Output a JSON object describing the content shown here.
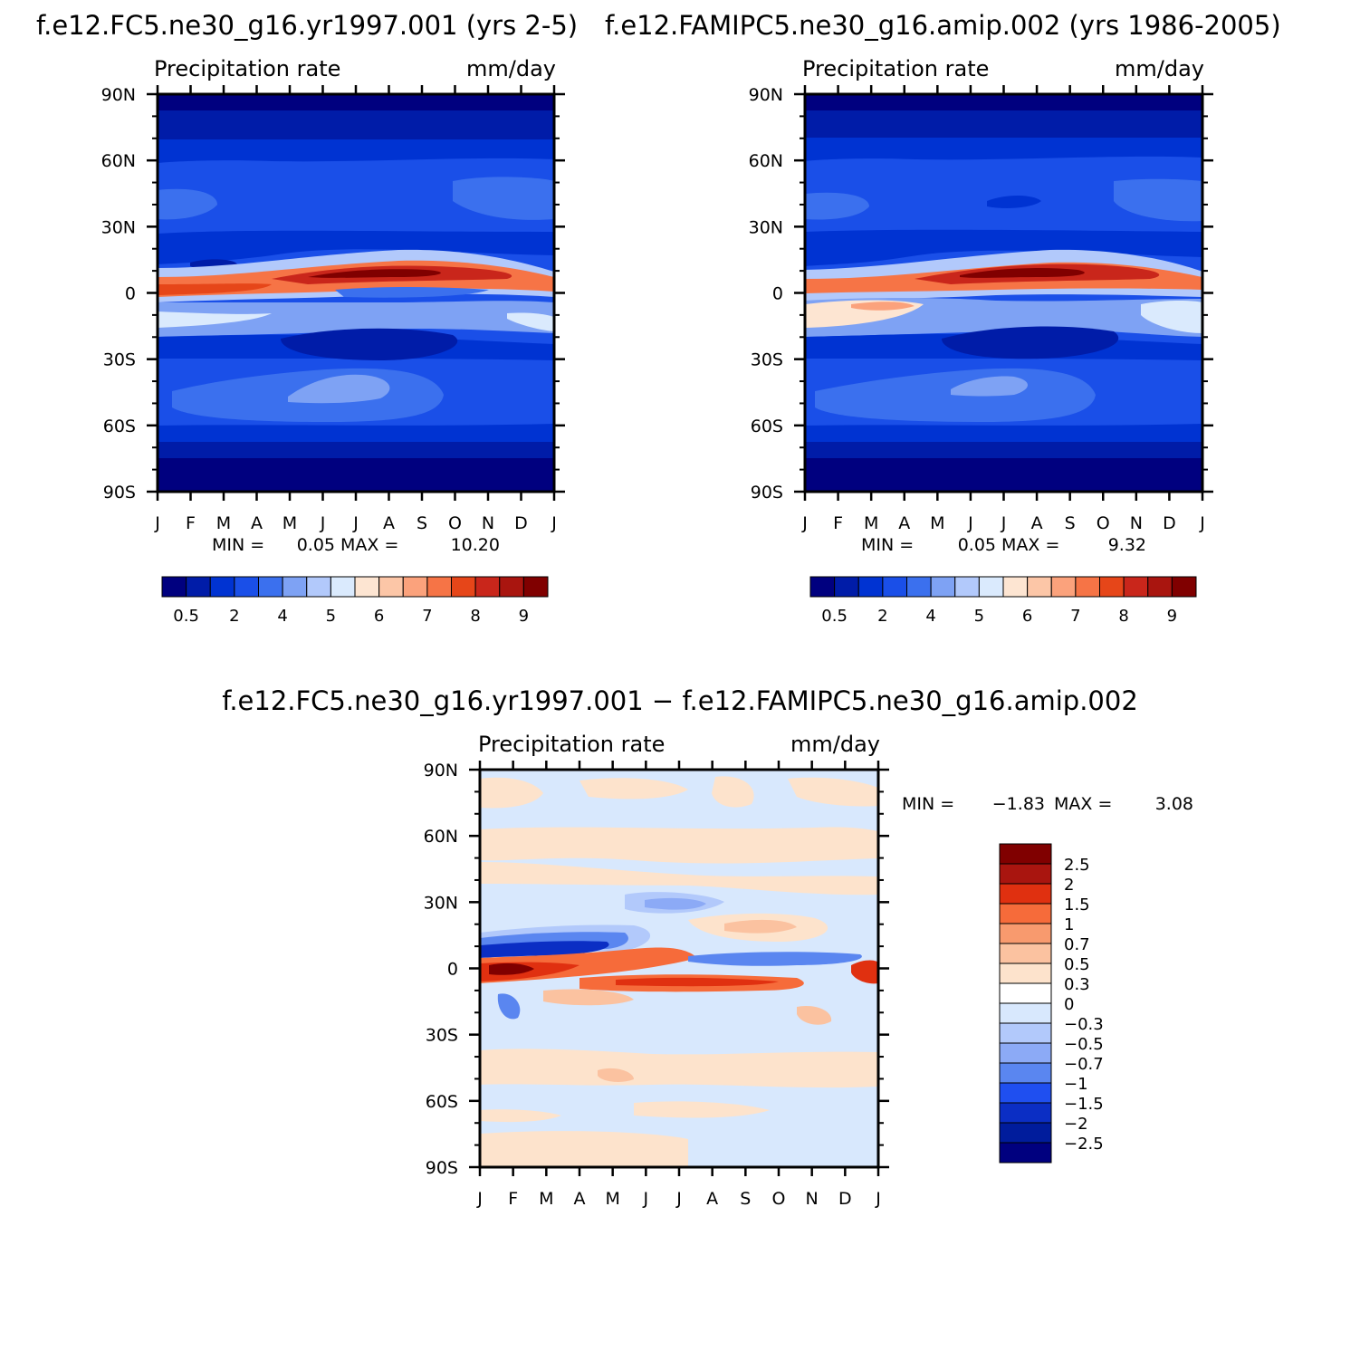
{
  "figure": {
    "panels": [
      {
        "id": "model_a",
        "title": "f.e12.FC5.ne30_g16.yr1997.001 (yrs 2-5)",
        "left_label": "Precipitation rate",
        "right_label": "mm/day",
        "min_label": "MIN =",
        "min_value": "0.05",
        "max_label": "MAX =",
        "max_value": "10.20"
      },
      {
        "id": "model_b",
        "title": "f.e12.FAMIPC5.ne30_g16.amip.002 (yrs 1986-2005)",
        "left_label": "Precipitation rate",
        "right_label": "mm/day",
        "min_label": "MIN =",
        "min_value": "0.05",
        "max_label": "MAX =",
        "max_value": "9.32"
      },
      {
        "id": "difference",
        "title": "f.e12.FC5.ne30_g16.yr1997.001 − f.e12.FAMIPC5.ne30_g16.amip.002",
        "left_label": "Precipitation rate",
        "right_label": "mm/day",
        "min_label": "MIN =",
        "min_value": "−1.83",
        "max_label": "MAX =",
        "max_value": "3.08"
      }
    ]
  },
  "chart_data": [
    {
      "type": "heatmap",
      "title": "f.e12.FC5.ne30_g16.yr1997.001 (yrs 2-5)",
      "xlabel": "",
      "ylabel": "",
      "units": "mm/day",
      "x_ticks": [
        "J",
        "F",
        "M",
        "A",
        "M",
        "J",
        "J",
        "A",
        "S",
        "O",
        "N",
        "D",
        "J"
      ],
      "y_ticks": [
        "90N",
        "60N",
        "30N",
        "0",
        "30S",
        "60S",
        "90S"
      ],
      "x": [
        "J",
        "F",
        "M",
        "A",
        "M",
        "J",
        "J",
        "A",
        "S",
        "O",
        "N",
        "D"
      ],
      "y": [
        "90N",
        "60N",
        "30N",
        "0",
        "30S",
        "60S",
        "90S"
      ],
      "z": [
        [
          0.4,
          0.4,
          0.5,
          0.6,
          0.6,
          0.6,
          0.6,
          0.6,
          0.6,
          0.5,
          0.4,
          0.4
        ],
        [
          2,
          2,
          2,
          2,
          2.5,
          2.5,
          2.5,
          2.5,
          2.5,
          3,
          3,
          2
        ],
        [
          3,
          3,
          3,
          2.5,
          2.5,
          2.5,
          3,
          3,
          3,
          3,
          3,
          3
        ],
        [
          7,
          6.5,
          6,
          6,
          6.5,
          7.5,
          8.5,
          9,
          9,
          8.5,
          8,
          7
        ],
        [
          3,
          2,
          2,
          1.5,
          1.5,
          1.5,
          1.5,
          2,
          2,
          2.5,
          3,
          3
        ],
        [
          2,
          2,
          2,
          2,
          2,
          2,
          2,
          2,
          2,
          2,
          2,
          2
        ],
        [
          0.4,
          0.4,
          0.4,
          0.4,
          0.4,
          0.4,
          0.4,
          0.4,
          0.4,
          0.4,
          0.4,
          0.4
        ]
      ],
      "zlim": [
        0.05,
        10.2
      ],
      "colorbar": {
        "tick_labels": [
          "0.5",
          "2",
          "4",
          "5",
          "6",
          "7",
          "8",
          "9"
        ],
        "colors": [
          "#00007f",
          "#001ca8",
          "#0033d2",
          "#1a4fe8",
          "#3b70ee",
          "#7ea2f4",
          "#b2c9fb",
          "#daeafd",
          "#fde5d2",
          "#fcc6a7",
          "#fba27c",
          "#f67446",
          "#e64619",
          "#c9261b",
          "#a9150f",
          "#800000"
        ]
      }
    },
    {
      "type": "heatmap",
      "title": "f.e12.FAMIPC5.ne30_g16.amip.002 (yrs 1986-2005)",
      "xlabel": "",
      "ylabel": "",
      "units": "mm/day",
      "x_ticks": [
        "J",
        "F",
        "M",
        "A",
        "M",
        "J",
        "J",
        "A",
        "S",
        "O",
        "N",
        "D",
        "J"
      ],
      "y_ticks": [
        "90N",
        "60N",
        "30N",
        "0",
        "30S",
        "60S",
        "90S"
      ],
      "x": [
        "J",
        "F",
        "M",
        "A",
        "M",
        "J",
        "J",
        "A",
        "S",
        "O",
        "N",
        "D"
      ],
      "y": [
        "90N",
        "60N",
        "30N",
        "0",
        "30S",
        "60S",
        "90S"
      ],
      "z": [
        [
          0.4,
          0.4,
          0.5,
          0.6,
          0.6,
          0.6,
          0.6,
          0.6,
          0.6,
          0.5,
          0.4,
          0.4
        ],
        [
          2,
          2,
          2,
          2,
          2.5,
          2.5,
          2.5,
          2.5,
          2.5,
          3,
          3,
          2
        ],
        [
          3,
          3,
          3,
          2.5,
          2.5,
          2.5,
          3,
          3,
          3,
          3,
          3,
          3
        ],
        [
          6.5,
          6.5,
          6.5,
          6.5,
          7,
          7.5,
          8.5,
          8.5,
          8.5,
          8,
          7.5,
          7
        ],
        [
          5,
          5,
          5,
          4,
          3,
          2,
          2,
          2,
          2.5,
          3,
          4,
          5
        ],
        [
          2,
          2,
          2,
          2,
          2,
          2,
          2,
          2,
          2,
          2,
          2,
          2
        ],
        [
          0.4,
          0.4,
          0.4,
          0.4,
          0.4,
          0.4,
          0.4,
          0.4,
          0.4,
          0.4,
          0.4,
          0.4
        ]
      ],
      "zlim": [
        0.05,
        9.32
      ],
      "colorbar": {
        "tick_labels": [
          "0.5",
          "2",
          "4",
          "5",
          "6",
          "7",
          "8",
          "9"
        ],
        "colors": [
          "#00007f",
          "#001ca8",
          "#0033d2",
          "#1a4fe8",
          "#3b70ee",
          "#7ea2f4",
          "#b2c9fb",
          "#daeafd",
          "#fde5d2",
          "#fcc6a7",
          "#fba27c",
          "#f67446",
          "#e64619",
          "#c9261b",
          "#a9150f",
          "#800000"
        ]
      }
    },
    {
      "type": "heatmap",
      "title": "f.e12.FC5.ne30_g16.yr1997.001 − f.e12.FAMIPC5.ne30_g16.amip.002",
      "xlabel": "",
      "ylabel": "",
      "units": "mm/day",
      "x_ticks": [
        "J",
        "F",
        "M",
        "A",
        "M",
        "J",
        "J",
        "A",
        "S",
        "O",
        "N",
        "D",
        "J"
      ],
      "y_ticks": [
        "90N",
        "60N",
        "30N",
        "0",
        "30S",
        "60S",
        "90S"
      ],
      "x": [
        "J",
        "F",
        "M",
        "A",
        "M",
        "J",
        "J",
        "A",
        "S",
        "O",
        "N",
        "D"
      ],
      "y": [
        "90N",
        "60N",
        "30N",
        "0",
        "30S",
        "60S",
        "90S"
      ],
      "z": [
        [
          0.1,
          -0.1,
          0.1,
          -0.1,
          0.1,
          -0.1,
          0.1,
          -0.1,
          0.1,
          -0.1,
          0.1,
          -0.1
        ],
        [
          0.2,
          0.1,
          0.1,
          0.2,
          0.1,
          0.2,
          0.1,
          0.1,
          0.2,
          0.1,
          0.1,
          0.2
        ],
        [
          -0.5,
          -1,
          -1.5,
          -1,
          -0.5,
          0,
          0.5,
          0.5,
          0.3,
          0.1,
          -0.3,
          -0.5
        ],
        [
          3,
          2.5,
          2,
          1.5,
          1.5,
          1,
          -0.5,
          -0.5,
          -0.3,
          0.3,
          1,
          3
        ],
        [
          -1,
          -0.5,
          0.3,
          1,
          1,
          1,
          1,
          1,
          1,
          0.7,
          0.3,
          0.1
        ],
        [
          -0.1,
          0.1,
          -0.1,
          0.1,
          -0.1,
          0.1,
          -0.1,
          0.1,
          -0.1,
          0.1,
          -0.1,
          0.1
        ],
        [
          -0.1,
          -0.1,
          -0.1,
          -0.1,
          -0.1,
          -0.1,
          -0.1,
          -0.1,
          -0.1,
          -0.1,
          -0.1,
          -0.1
        ]
      ],
      "zlim": [
        -1.83,
        3.08
      ],
      "colorbar": {
        "tick_labels": [
          "2.5",
          "2",
          "1.5",
          "1",
          "0.7",
          "0.5",
          "0.3",
          "0",
          "−0.3",
          "−0.5",
          "−0.7",
          "−1",
          "−1.5",
          "−2",
          "−2.5"
        ],
        "colors": [
          "#800000",
          "#a9150f",
          "#e03010",
          "#f66b3a",
          "#f89a6e",
          "#fbc2a0",
          "#fde3cc",
          "#ffffff",
          "#d8e8fd",
          "#b2c9fb",
          "#8caaf6",
          "#5a86f0",
          "#1f4ff0",
          "#0b2ec4",
          "#001c9c",
          "#00007f"
        ]
      }
    }
  ]
}
